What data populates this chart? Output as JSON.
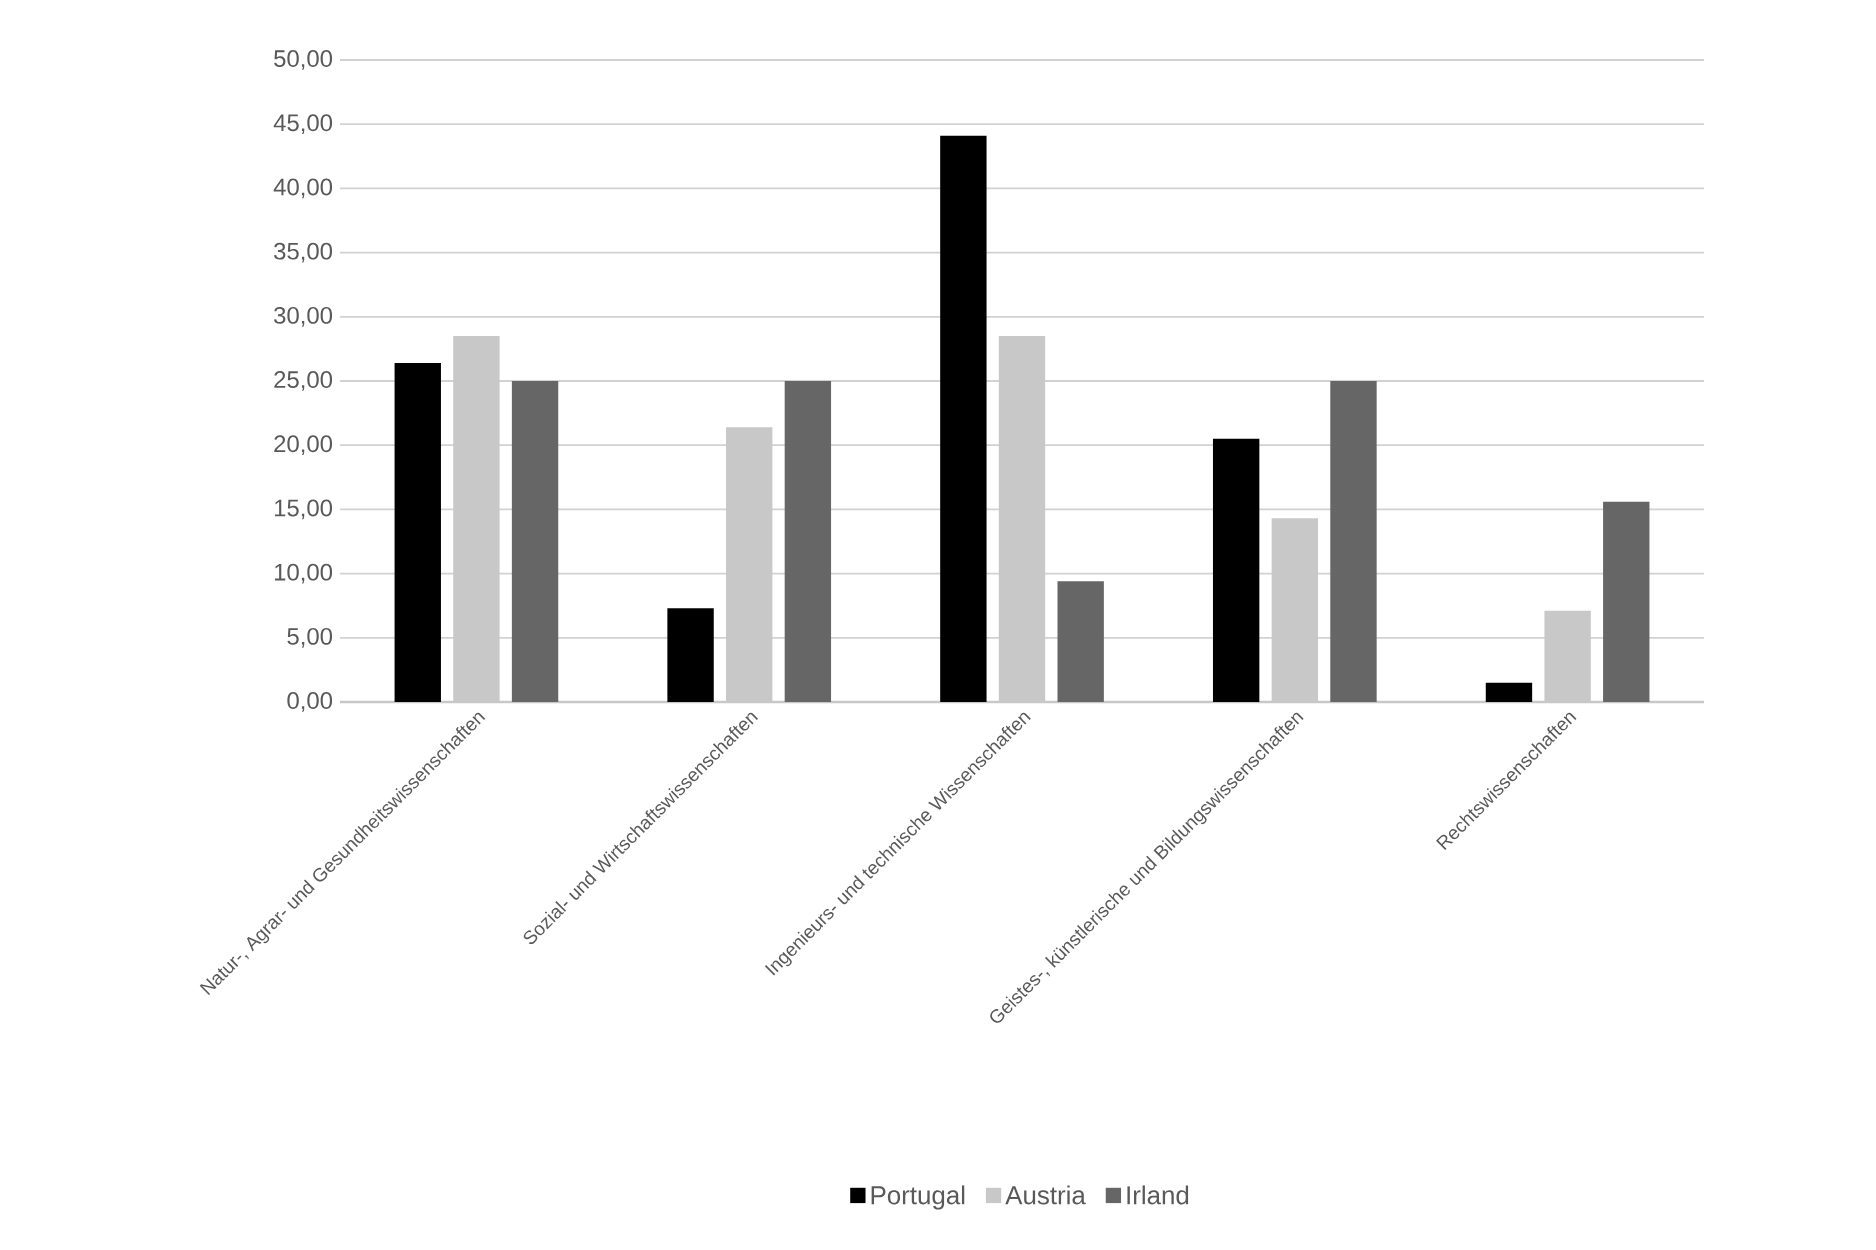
{
  "chart_data": {
    "type": "bar",
    "categories": [
      "Natur-, Agrar- und Gesundheitswissenschaften",
      "Sozial- und Wirtschaftswissenschaften",
      "Ingenieurs- und technische Wissenschaften",
      "Geistes-, künstlerische und Bildungswissenschaften",
      "Rechtswissenschaften"
    ],
    "series": [
      {
        "name": "Portugal",
        "color": "#000000",
        "values": [
          26.4,
          7.3,
          44.1,
          20.5,
          1.5
        ]
      },
      {
        "name": "Austria",
        "color": "#c8c8c8",
        "values": [
          28.5,
          21.4,
          28.5,
          14.3,
          7.1
        ]
      },
      {
        "name": "Irland",
        "color": "#666666",
        "values": [
          25.0,
          25.0,
          9.4,
          25.0,
          15.6
        ]
      }
    ],
    "ylim": [
      0,
      50
    ],
    "yticks": [
      {
        "value": 0,
        "label": "0,00"
      },
      {
        "value": 5,
        "label": "5,00"
      },
      {
        "value": 10,
        "label": "10,00"
      },
      {
        "value": 15,
        "label": "15,00"
      },
      {
        "value": 20,
        "label": "20,00"
      },
      {
        "value": 25,
        "label": "25,00"
      },
      {
        "value": 30,
        "label": "30,00"
      },
      {
        "value": 35,
        "label": "35,00"
      },
      {
        "value": 40,
        "label": "40,00"
      },
      {
        "value": 45,
        "label": "45,00"
      },
      {
        "value": 50,
        "label": "50,00"
      }
    ],
    "grid": "y",
    "legend": "bottom"
  }
}
